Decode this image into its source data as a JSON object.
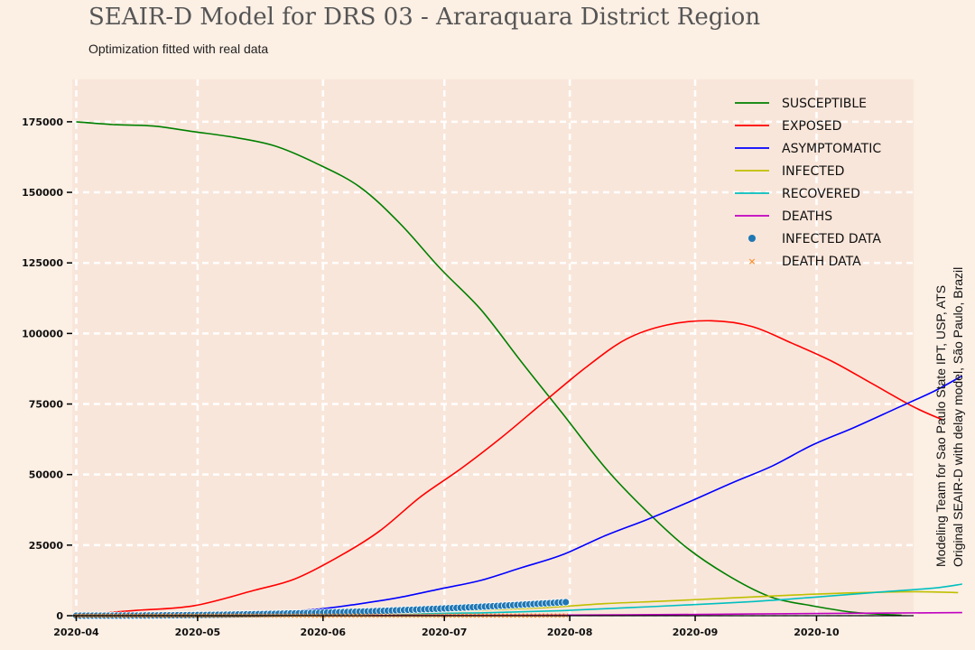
{
  "title": "SEAIR-D Model for DRS 03 - Araraquara District Region",
  "subtitle": "Optimization fitted with real data",
  "credits": [
    "Modeling Team for Sao Paulo State IPT, USP, ATS",
    "Original SEAIR-D with delay model, São Paulo, Brazil"
  ],
  "colors": {
    "background": "#fcefe4",
    "plot_background": "#f9e6da",
    "grid": "#ffffff",
    "susceptible": "#008000",
    "exposed": "#ff0000",
    "asymptomatic": "#0000ff",
    "infected": "#bfbf00",
    "recovered": "#00bfbf",
    "deaths": "#bf00bf",
    "infected_data": "#1f77b4",
    "death_data": "#ff7f0e"
  },
  "chart_data": {
    "type": "line",
    "x_axis": {
      "type": "date",
      "range": [
        "2020-03-31",
        "2020-10-25"
      ],
      "ticks": [
        "2020-04",
        "2020-05",
        "2020-06",
        "2020-07",
        "2020-08",
        "2020-09",
        "2020-10"
      ]
    },
    "y_axis": {
      "range": [
        0,
        190000
      ],
      "ticks": [
        0,
        25000,
        50000,
        75000,
        100000,
        125000,
        150000,
        175000
      ]
    },
    "grid": true,
    "legend_position": "top-right",
    "series": [
      {
        "name": "susceptible",
        "kind": "line",
        "color_key": "susceptible",
        "points": [
          [
            "2020-04-01",
            175000
          ],
          [
            "2020-04-10",
            174000
          ],
          [
            "2020-04-20",
            173500
          ],
          [
            "2020-04-30",
            171500
          ],
          [
            "2020-05-10",
            169500
          ],
          [
            "2020-05-20",
            166500
          ],
          [
            "2020-05-30",
            160500
          ],
          [
            "2020-06-10",
            152000
          ],
          [
            "2020-06-20",
            139000
          ],
          [
            "2020-06-30",
            123000
          ],
          [
            "2020-07-10",
            108500
          ],
          [
            "2020-07-20",
            90000
          ],
          [
            "2020-07-30",
            72000
          ],
          [
            "2020-08-10",
            52000
          ],
          [
            "2020-08-20",
            37000
          ],
          [
            "2020-08-30",
            24000
          ],
          [
            "2020-09-10",
            13500
          ],
          [
            "2020-09-20",
            6500
          ],
          [
            "2020-09-30",
            3500
          ],
          [
            "2020-10-10",
            1200
          ],
          [
            "2020-10-20",
            300
          ],
          [
            "2020-10-22",
            200
          ]
        ]
      },
      {
        "name": "exposed",
        "kind": "line",
        "color_key": "exposed",
        "points": [
          [
            "2020-04-01",
            200
          ],
          [
            "2020-04-15",
            1800
          ],
          [
            "2020-04-30",
            3500
          ],
          [
            "2020-05-15",
            9000
          ],
          [
            "2020-05-25",
            13000
          ],
          [
            "2020-06-05",
            21000
          ],
          [
            "2020-06-15",
            30000
          ],
          [
            "2020-06-25",
            42000
          ],
          [
            "2020-07-05",
            52000
          ],
          [
            "2020-07-15",
            63000
          ],
          [
            "2020-07-25",
            75000
          ],
          [
            "2020-08-05",
            88000
          ],
          [
            "2020-08-15",
            98000
          ],
          [
            "2020-08-25",
            103000
          ],
          [
            "2020-09-05",
            104500
          ],
          [
            "2020-09-15",
            102500
          ],
          [
            "2020-09-25",
            96500
          ],
          [
            "2020-10-05",
            90000
          ],
          [
            "2020-10-15",
            82000
          ],
          [
            "2020-10-25",
            74000
          ],
          [
            "2020-11-01",
            69500
          ]
        ]
      },
      {
        "name": "asymptomatic",
        "kind": "line",
        "color_key": "asymptomatic",
        "points": [
          [
            "2020-04-01",
            0
          ],
          [
            "2020-05-01",
            300
          ],
          [
            "2020-05-15",
            900
          ],
          [
            "2020-05-30",
            2200
          ],
          [
            "2020-06-10",
            4200
          ],
          [
            "2020-06-20",
            6500
          ],
          [
            "2020-06-30",
            9500
          ],
          [
            "2020-07-10",
            12500
          ],
          [
            "2020-07-20",
            17000
          ],
          [
            "2020-07-30",
            21500
          ],
          [
            "2020-08-10",
            28500
          ],
          [
            "2020-08-20",
            34000
          ],
          [
            "2020-08-30",
            40000
          ],
          [
            "2020-09-10",
            47000
          ],
          [
            "2020-09-20",
            53000
          ],
          [
            "2020-09-30",
            60500
          ],
          [
            "2020-10-10",
            66500
          ],
          [
            "2020-10-20",
            73000
          ],
          [
            "2020-10-30",
            79500
          ],
          [
            "2020-11-06",
            85000
          ]
        ]
      },
      {
        "name": "infected",
        "kind": "line",
        "color_key": "infected",
        "points": [
          [
            "2020-04-01",
            0
          ],
          [
            "2020-05-15",
            400
          ],
          [
            "2020-06-15",
            1000
          ],
          [
            "2020-07-05",
            1800
          ],
          [
            "2020-07-25",
            2800
          ],
          [
            "2020-08-10",
            4300
          ],
          [
            "2020-08-25",
            5200
          ],
          [
            "2020-09-10",
            6300
          ],
          [
            "2020-09-25",
            7300
          ],
          [
            "2020-10-10",
            8100
          ],
          [
            "2020-10-25",
            8500
          ],
          [
            "2020-11-05",
            8200
          ]
        ]
      },
      {
        "name": "recovered",
        "kind": "line",
        "color_key": "recovered",
        "points": [
          [
            "2020-04-01",
            0
          ],
          [
            "2020-05-15",
            200
          ],
          [
            "2020-06-15",
            500
          ],
          [
            "2020-07-10",
            1000
          ],
          [
            "2020-07-30",
            1800
          ],
          [
            "2020-08-15",
            2800
          ],
          [
            "2020-08-30",
            3800
          ],
          [
            "2020-09-15",
            5000
          ],
          [
            "2020-09-30",
            6500
          ],
          [
            "2020-10-15",
            8200
          ],
          [
            "2020-10-30",
            9800
          ],
          [
            "2020-11-06",
            11200
          ]
        ]
      },
      {
        "name": "deaths",
        "kind": "line",
        "color_key": "deaths",
        "points": [
          [
            "2020-04-01",
            0
          ],
          [
            "2020-07-01",
            100
          ],
          [
            "2020-08-15",
            300
          ],
          [
            "2020-09-15",
            600
          ],
          [
            "2020-10-15",
            900
          ],
          [
            "2020-11-06",
            1100
          ]
        ]
      },
      {
        "name": "infected data",
        "kind": "scatter",
        "color_key": "infected_data",
        "start": "2020-04-01",
        "end": "2020-07-31",
        "start_value": 10,
        "end_value": 4800,
        "count": 122
      },
      {
        "name": "death data",
        "kind": "scatter",
        "color_key": "death_data",
        "start": "2020-04-01",
        "end": "2020-07-31",
        "start_value": 0,
        "end_value": 60,
        "count": 122
      }
    ]
  }
}
